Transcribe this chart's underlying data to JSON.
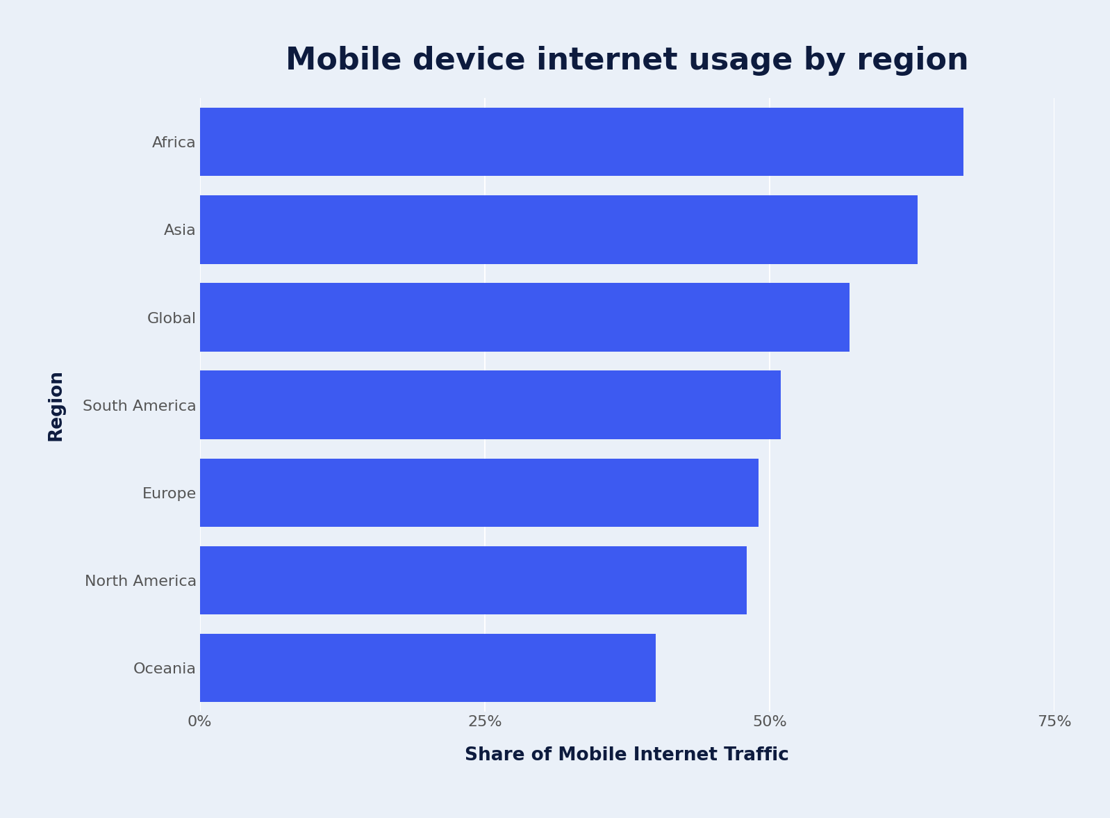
{
  "title": "Mobile device internet usage by region",
  "xlabel": "Share of Mobile Internet Traffic",
  "ylabel": "Region",
  "categories": [
    "Africa",
    "Asia",
    "Global",
    "South America",
    "Europe",
    "North America",
    "Oceania"
  ],
  "values": [
    67,
    63,
    57,
    51,
    49,
    48,
    40
  ],
  "bar_color": "#3D5AF1",
  "background_color": "#EAF0F8",
  "text_color": "#0d1b3e",
  "label_color": "#555555",
  "xlim": [
    0,
    75
  ],
  "xtick_positions": [
    0,
    25,
    50,
    75
  ],
  "xtick_labels": [
    "0%",
    "25%",
    "50%",
    "75%"
  ],
  "title_fontsize": 32,
  "axis_label_fontsize": 19,
  "tick_fontsize": 16,
  "bar_height": 0.78
}
